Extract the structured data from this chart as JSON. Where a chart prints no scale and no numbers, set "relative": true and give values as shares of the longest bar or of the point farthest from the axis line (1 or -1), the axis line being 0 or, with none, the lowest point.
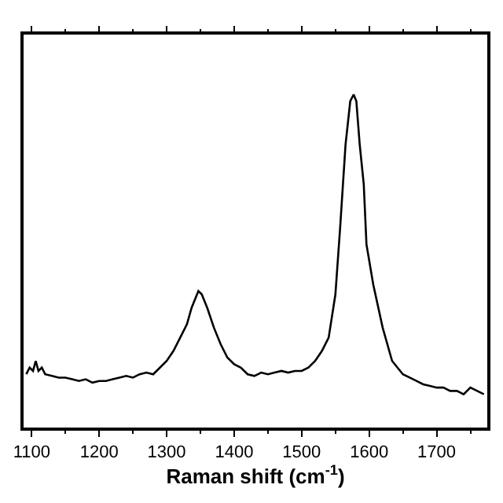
{
  "chart_data": {
    "type": "line",
    "relative": true,
    "xlabel": "Raman shift (cm$^{-1}$)",
    "xlim": [
      1088,
      1775
    ],
    "xticks": [
      1100,
      1200,
      1300,
      1400,
      1500,
      1600,
      1700
    ],
    "x": [
      1092,
      1097,
      1102,
      1106,
      1110,
      1115,
      1120,
      1130,
      1140,
      1150,
      1160,
      1170,
      1180,
      1190,
      1200,
      1210,
      1220,
      1230,
      1240,
      1250,
      1260,
      1270,
      1280,
      1290,
      1300,
      1310,
      1320,
      1330,
      1337,
      1343,
      1347,
      1352,
      1360,
      1370,
      1380,
      1390,
      1400,
      1410,
      1420,
      1430,
      1440,
      1450,
      1460,
      1470,
      1480,
      1490,
      1500,
      1510,
      1520,
      1530,
      1540,
      1550,
      1557,
      1565,
      1572,
      1577,
      1581,
      1586,
      1592,
      1596,
      1606,
      1620,
      1634,
      1650,
      1660,
      1670,
      1680,
      1690,
      1700,
      1710,
      1720,
      1730,
      1740,
      1750,
      1760,
      1770
    ],
    "series": [
      {
        "color": "#000000",
        "values": [
          0.16,
          0.18,
          0.17,
          0.2,
          0.17,
          0.18,
          0.16,
          0.155,
          0.15,
          0.15,
          0.145,
          0.14,
          0.145,
          0.135,
          0.14,
          0.14,
          0.145,
          0.15,
          0.155,
          0.15,
          0.16,
          0.165,
          0.16,
          0.18,
          0.2,
          0.23,
          0.27,
          0.31,
          0.36,
          0.39,
          0.41,
          0.4,
          0.36,
          0.3,
          0.25,
          0.21,
          0.19,
          0.18,
          0.16,
          0.155,
          0.165,
          0.16,
          0.165,
          0.17,
          0.165,
          0.17,
          0.17,
          0.18,
          0.2,
          0.23,
          0.27,
          0.4,
          0.6,
          0.85,
          0.98,
          1.0,
          0.98,
          0.85,
          0.73,
          0.55,
          0.43,
          0.3,
          0.2,
          0.16,
          0.15,
          0.14,
          0.13,
          0.125,
          0.12,
          0.12,
          0.11,
          0.11,
          0.1,
          0.12,
          0.11,
          0.1
        ]
      }
    ]
  }
}
